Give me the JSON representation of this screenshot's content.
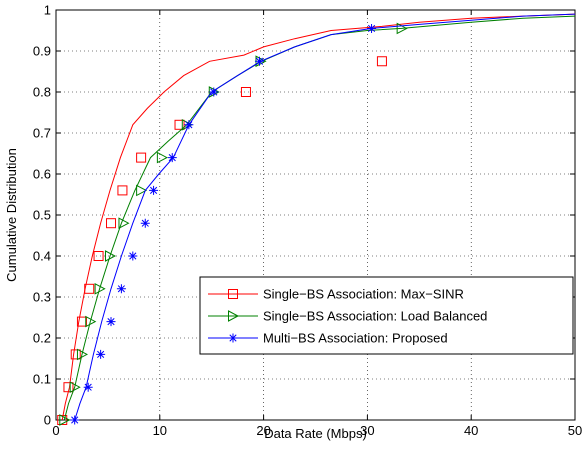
{
  "chart_data": {
    "type": "line",
    "title": "",
    "xlabel": "Data Rate (Mbps)",
    "ylabel": "Cumulative Distribution",
    "xlim": [
      0,
      50
    ],
    "ylim": [
      0,
      1
    ],
    "xticks": [
      0,
      10,
      20,
      30,
      40,
      50
    ],
    "yticks": [
      0,
      0.1,
      0.2,
      0.3,
      0.4,
      0.5,
      0.6,
      0.7,
      0.8,
      0.9,
      1
    ],
    "xtick_labels": [
      "0",
      "10",
      "20",
      "30",
      "40",
      "50"
    ],
    "ytick_labels": [
      "0",
      "0.1",
      "0.2",
      "0.3",
      "0.4",
      "0.5",
      "0.6",
      "0.7",
      "0.8",
      "0.9",
      "1"
    ],
    "grid": true,
    "legend_position": "lower-right",
    "series": [
      {
        "name": "Single−BS Association: Max−SINR",
        "color": "#ff0000",
        "marker": "square",
        "x": [
          0.6,
          0.9,
          1.3,
          1.7,
          2.2,
          2.8,
          3.5,
          4.3,
          5.2,
          6.2,
          7.4,
          8.8,
          10.4,
          12.3,
          14.8,
          18.1,
          20.0,
          23.0,
          26.5,
          31.4,
          35.0,
          40.0,
          45.0,
          50.0
        ],
        "y": [
          0.0,
          0.04,
          0.08,
          0.16,
          0.24,
          0.32,
          0.4,
          0.48,
          0.56,
          0.64,
          0.72,
          0.76,
          0.8,
          0.84,
          0.875,
          0.89,
          0.91,
          0.93,
          0.95,
          0.96,
          0.97,
          0.98,
          0.985,
          0.99
        ],
        "marker_x": [
          0.6,
          1.2,
          1.9,
          2.5,
          3.2,
          4.1,
          5.3,
          6.4,
          8.2,
          11.9,
          18.3,
          31.4
        ],
        "marker_y": [
          0.0,
          0.08,
          0.16,
          0.24,
          0.32,
          0.4,
          0.48,
          0.56,
          0.64,
          0.72,
          0.8,
          0.875
        ],
        "marker_labels": []
      },
      {
        "name": "Single−BS Association: Load Balanced",
        "color": "#008000",
        "marker": "triangle-right",
        "x": [
          0.8,
          1.2,
          1.8,
          2.5,
          3.3,
          4.2,
          5.2,
          6.3,
          7.6,
          9.1,
          10.8,
          12.6,
          15.0,
          17.5,
          19.8,
          23.0,
          26.5,
          30.0,
          33.3,
          40.0,
          45.0,
          50.0
        ],
        "y": [
          0.0,
          0.04,
          0.08,
          0.16,
          0.24,
          0.32,
          0.4,
          0.48,
          0.56,
          0.64,
          0.68,
          0.72,
          0.8,
          0.84,
          0.875,
          0.91,
          0.94,
          0.95,
          0.955,
          0.97,
          0.98,
          0.985
        ],
        "marker_x": [
          0.8,
          1.8,
          2.5,
          3.3,
          4.2,
          5.2,
          6.5,
          8.2,
          10.2,
          12.6,
          15.2,
          19.7,
          33.3
        ],
        "marker_y": [
          0.0,
          0.08,
          0.16,
          0.24,
          0.32,
          0.4,
          0.48,
          0.56,
          0.64,
          0.72,
          0.8,
          0.875,
          0.955
        ],
        "marker_labels": []
      },
      {
        "name": "Multi−BS Association: Proposed",
        "color": "#0000ff",
        "marker": "asterisk",
        "x": [
          1.8,
          2.3,
          2.9,
          3.6,
          4.4,
          5.3,
          6.3,
          7.4,
          8.6,
          9.9,
          11.3,
          12.8,
          15.0,
          17.5,
          19.7,
          23.0,
          26.5,
          30.4,
          35.0,
          40.0,
          45.0,
          50.0
        ],
        "y": [
          0.0,
          0.04,
          0.08,
          0.16,
          0.24,
          0.32,
          0.4,
          0.48,
          0.56,
          0.6,
          0.64,
          0.72,
          0.8,
          0.84,
          0.875,
          0.91,
          0.94,
          0.955,
          0.965,
          0.975,
          0.985,
          0.99
        ],
        "marker_x": [
          1.8,
          3.1,
          4.3,
          5.3,
          6.3,
          7.4,
          8.6,
          9.4,
          11.2,
          12.8,
          15.2,
          19.6,
          30.4
        ],
        "marker_y": [
          0.0,
          0.08,
          0.16,
          0.24,
          0.32,
          0.4,
          0.48,
          0.56,
          0.64,
          0.72,
          0.8,
          0.875,
          0.955
        ],
        "marker_labels": []
      }
    ]
  }
}
